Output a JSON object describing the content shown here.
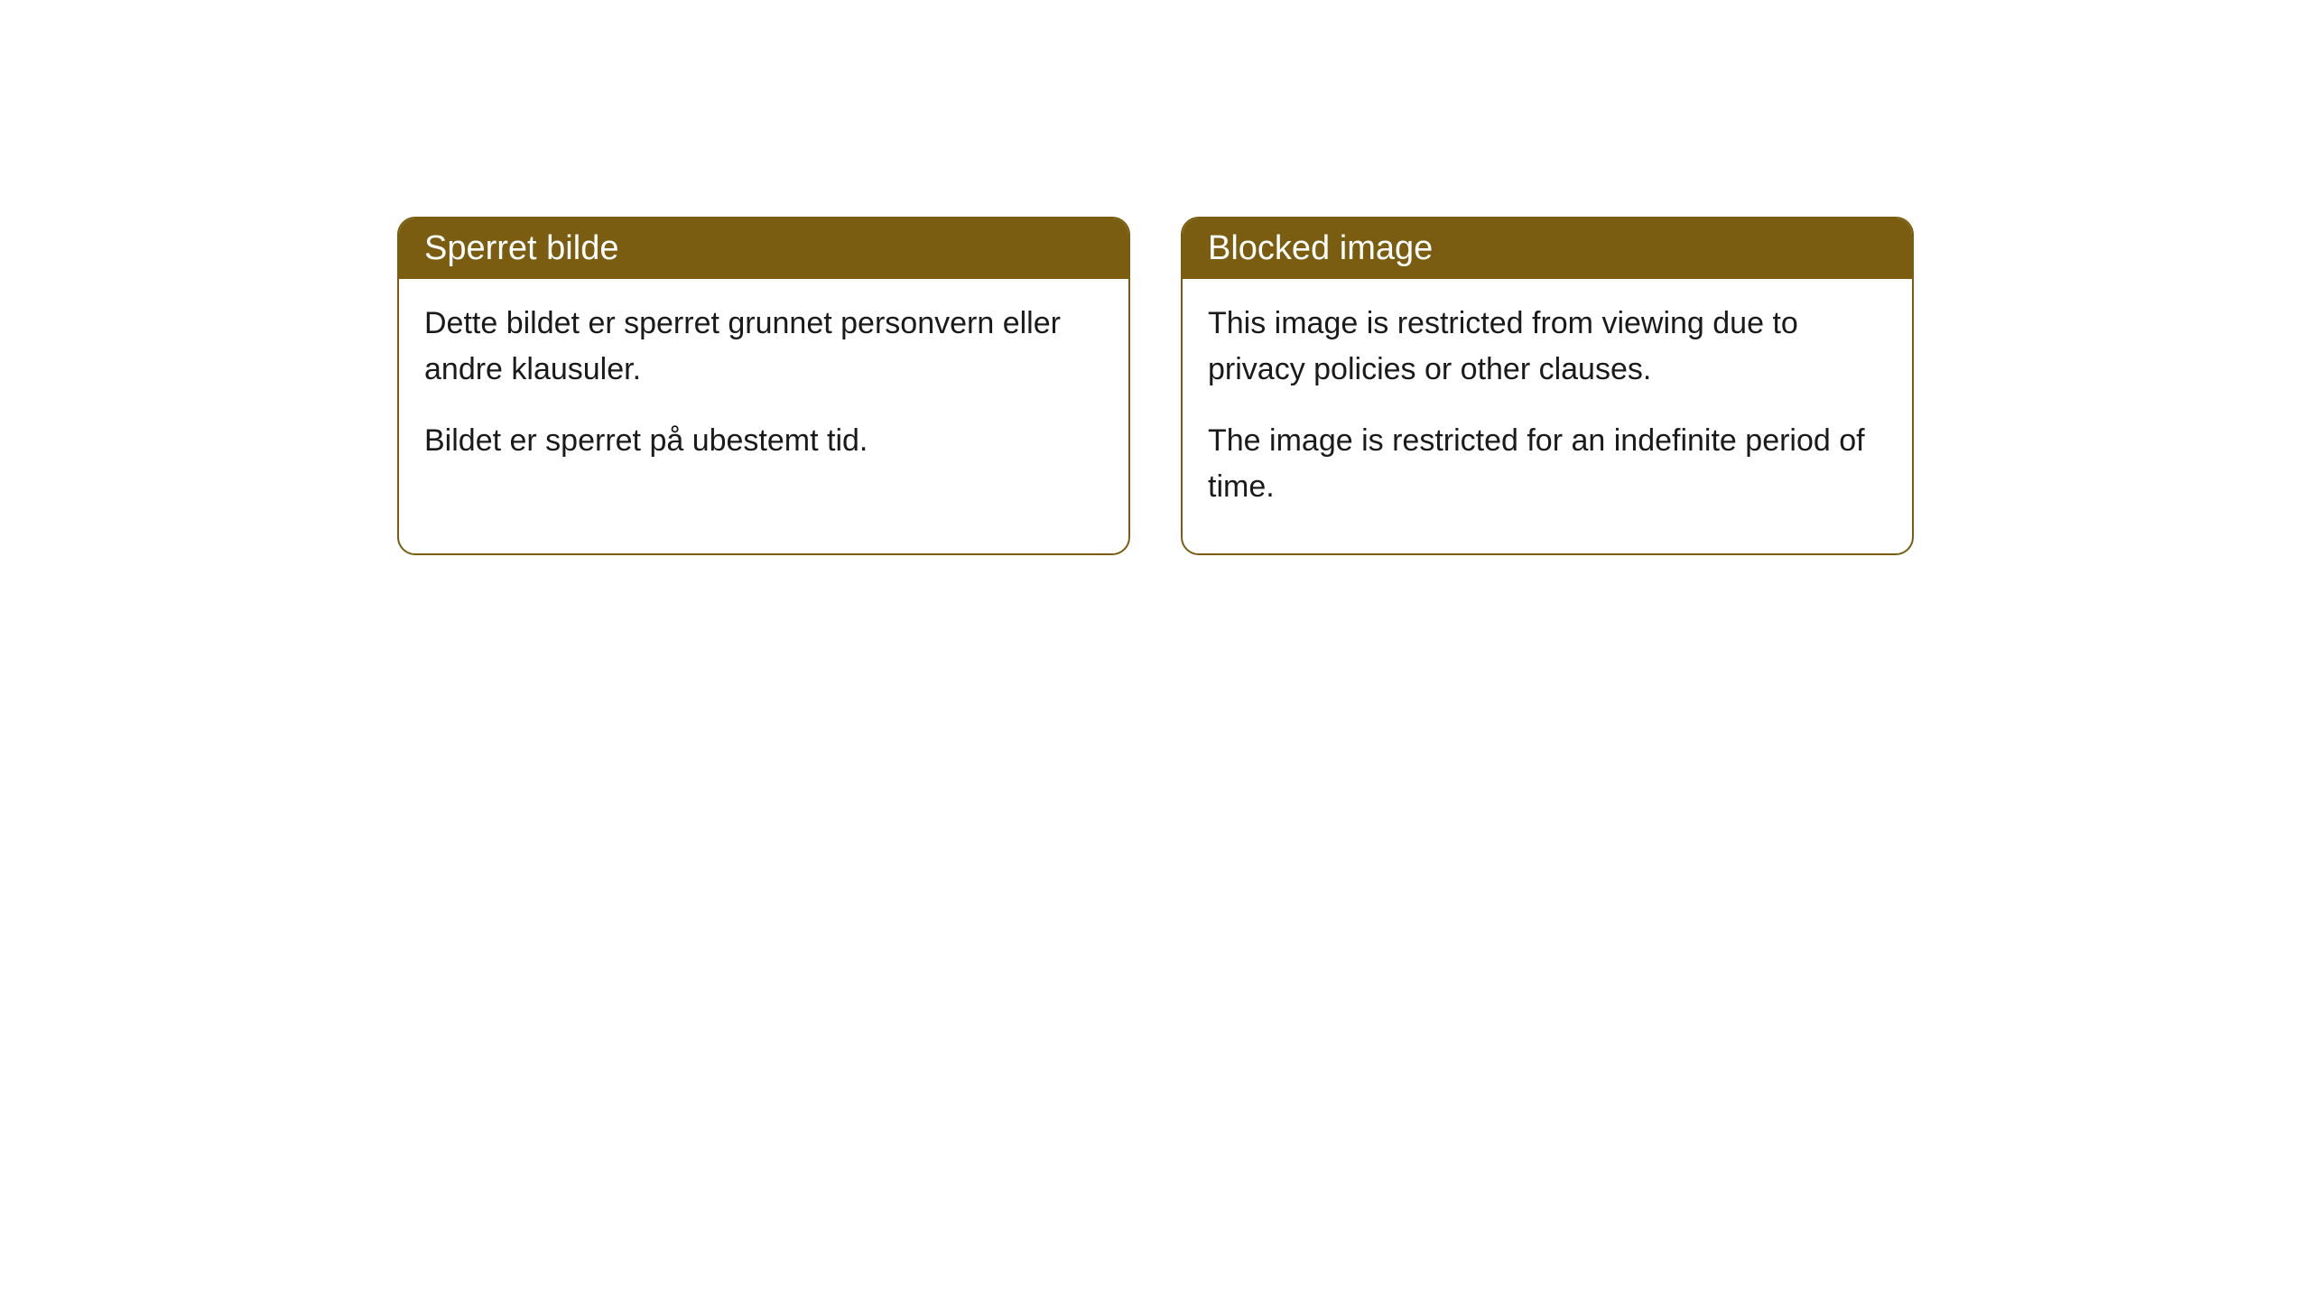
{
  "cards": [
    {
      "title": "Sperret bilde",
      "paragraph1": "Dette bildet er sperret grunnet personvern eller andre klausuler.",
      "paragraph2": "Bildet er sperret på ubestemt tid."
    },
    {
      "title": "Blocked image",
      "paragraph1": "This image is restricted from viewing due to privacy policies or other clauses.",
      "paragraph2": "The image is restricted for an indefinite period of time."
    }
  ],
  "styling": {
    "header_background": "#7a5d11",
    "header_text_color": "#ffffff",
    "border_color": "#7a5d11",
    "body_text_color": "#1a1a1a",
    "card_background": "#ffffff",
    "border_radius": 20,
    "title_fontsize": 38,
    "body_fontsize": 34
  }
}
